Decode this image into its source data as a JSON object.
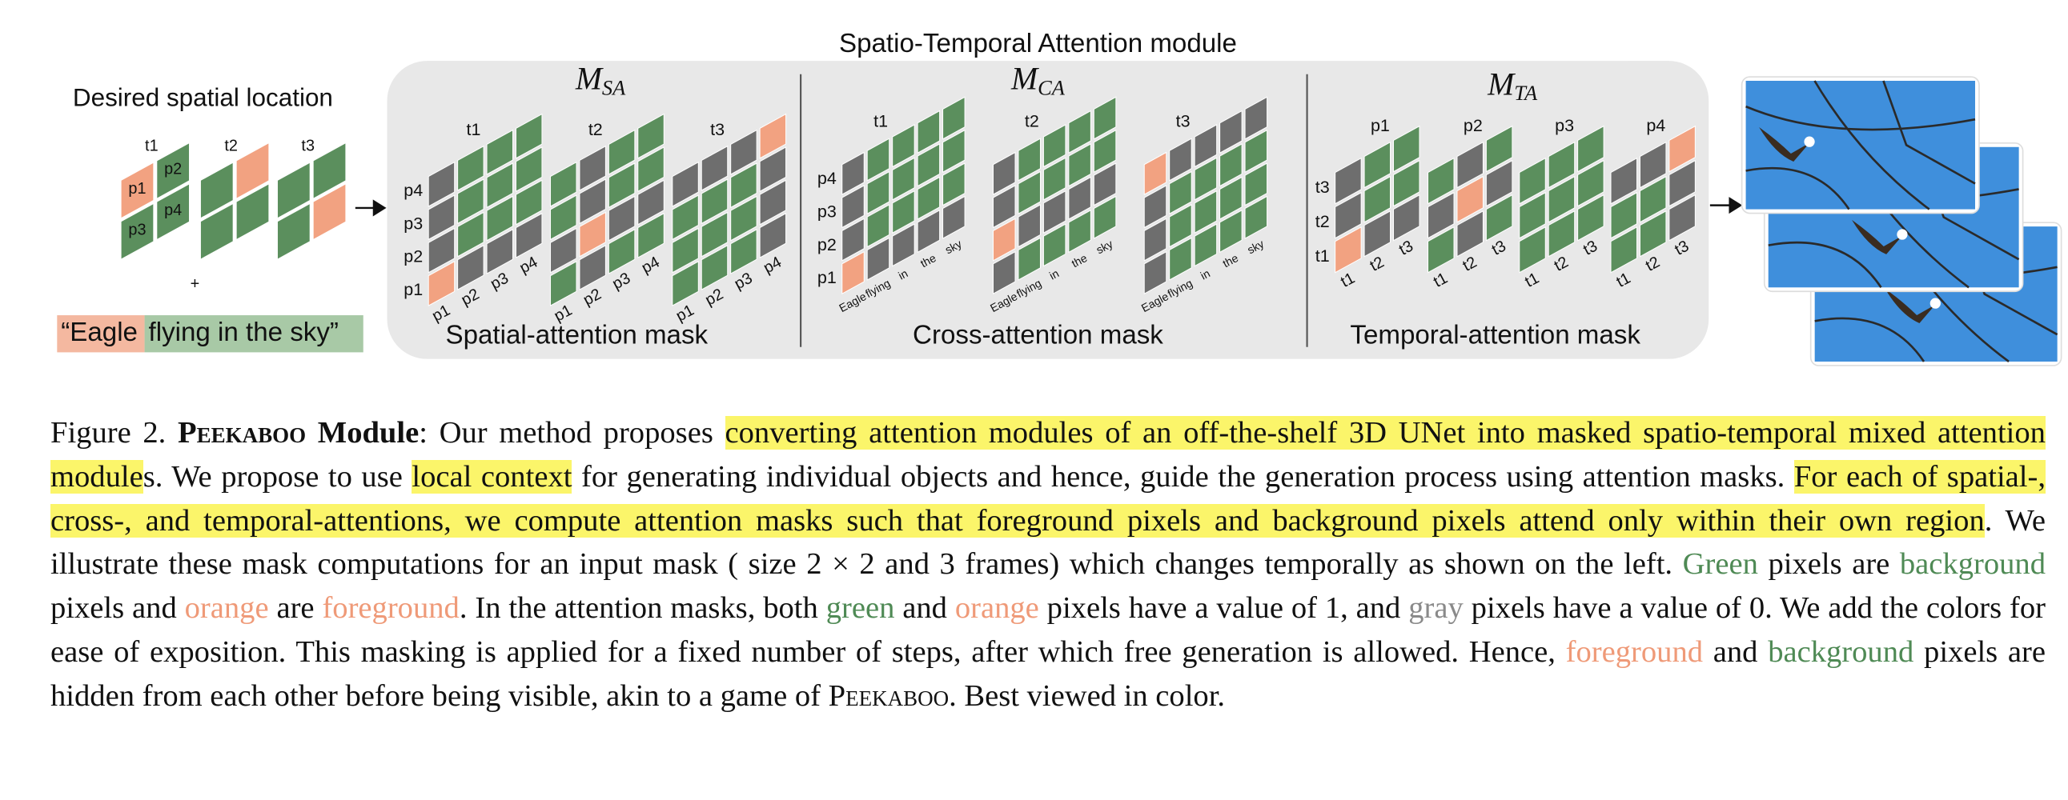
{
  "diagram": {
    "title": "Spatio-Temporal Attention module",
    "input": {
      "label": "Desired spatial location",
      "frames": [
        "t1",
        "t2",
        "t3"
      ],
      "pixels": [
        "p1",
        "p2",
        "p3",
        "p4"
      ],
      "plus": "+",
      "prompt_fg": "“Eagle",
      "prompt_bg": "flying in the sky”"
    },
    "panels": [
      {
        "symbol": "M",
        "subscript": "SA",
        "caption": "Spatial-attention mask",
        "groups": [
          "t1",
          "t2",
          "t3"
        ],
        "rows": [
          "p1",
          "p2",
          "p3",
          "p4"
        ],
        "cols": [
          "p1",
          "p2",
          "p3",
          "p4"
        ]
      },
      {
        "symbol": "M",
        "subscript": "CA",
        "caption": "Cross-attention mask",
        "groups": [
          "t1",
          "t2",
          "t3"
        ],
        "rows": [
          "p1",
          "p2",
          "p3",
          "p4"
        ],
        "cols": [
          "Eagle",
          "flying",
          "in",
          "the",
          "sky"
        ]
      },
      {
        "symbol": "M",
        "subscript": "TA",
        "caption": "Temporal-attention mask",
        "groups": [
          "p1",
          "p2",
          "p3",
          "p4"
        ],
        "rows": [
          "t1",
          "t2",
          "t3"
        ],
        "cols": [
          "t1",
          "t2",
          "t3"
        ]
      }
    ]
  },
  "caption": {
    "parts": [
      "Figure 2.  ",
      "Peekaboo",
      " Module",
      ": Our method proposes ",
      "converting attention modules of an off-the-shelf 3D UNet into masked spatio-temporal mixed attention module",
      "s.  We propose to use ",
      "local context",
      " for generating individual objects and hence, guide the generation process using attention masks.  ",
      "For each of spatial-, cross-, and temporal-attentions, we compute attention masks such that foreground pixels and background pixels attend only within their own region",
      ". We illustrate these mask computations for an input mask ( size 2 × 2 and 3 frames) which changes temporally as shown on the left. ",
      "Green",
      " pixels are ",
      "background",
      " pixels and ",
      "orange",
      " are ",
      "foreground",
      ". In the attention masks, both ",
      "green",
      " and ",
      "orange",
      " pixels have a value of 1, and ",
      "gray",
      " pixels have a value of 0.  We add the colors for ease of exposition.  This masking is applied for a fixed number of steps, after which free generation is allowed. Hence, ",
      "foreground",
      " and ",
      "background",
      " pixels are hidden from each other before being visible, akin to a game of ",
      "Peekaboo",
      ". Best viewed in color."
    ]
  }
}
